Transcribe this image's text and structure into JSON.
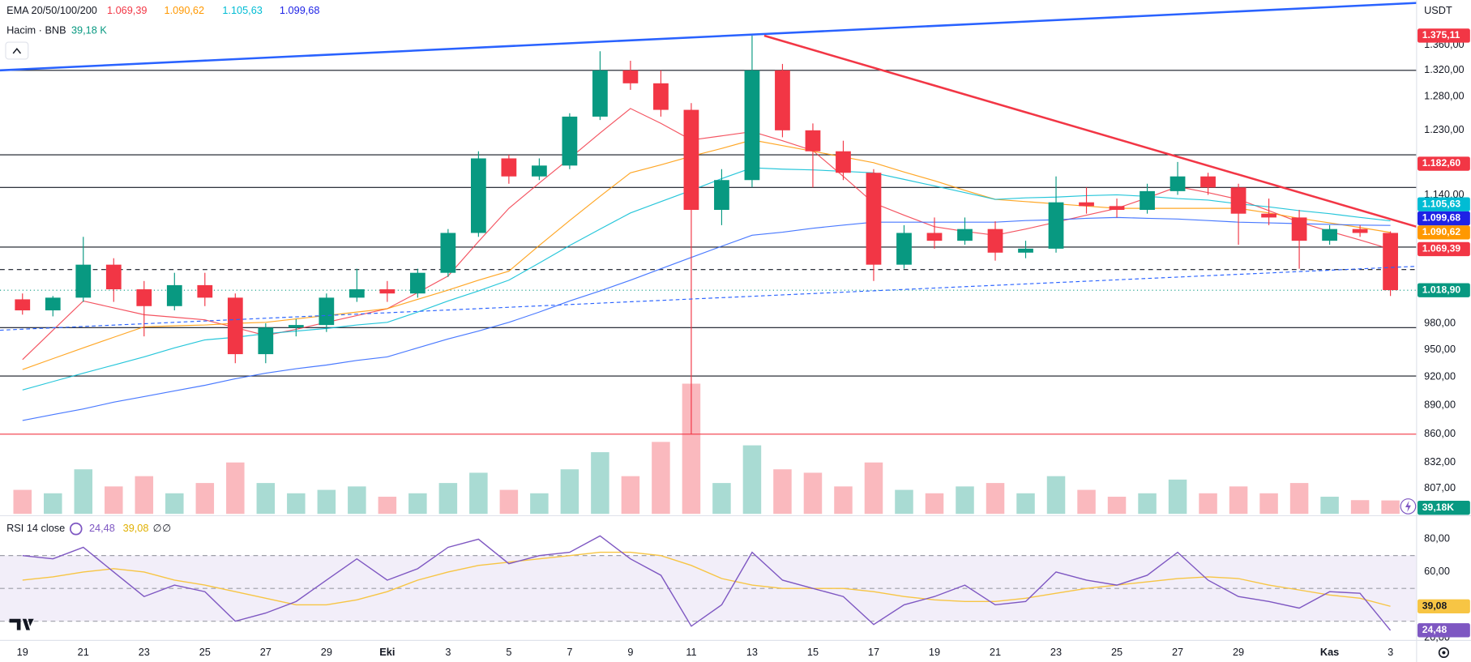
{
  "chart_data": {
    "type": "candlestick",
    "currency": "USDT",
    "ylim": [
      783,
      1434
    ],
    "log_scale": true,
    "yticks": [
      {
        "value": 1360,
        "label": "1.360,00"
      },
      {
        "value": 1320,
        "label": "1.320,00"
      },
      {
        "value": 1280,
        "label": "1.280,00"
      },
      {
        "value": 1230,
        "label": "1.230,00"
      },
      {
        "value": 1140,
        "label": "1.140,00"
      },
      {
        "value": 980,
        "label": "980,00"
      },
      {
        "value": 950,
        "label": "950,00"
      },
      {
        "value": 920,
        "label": "920,00"
      },
      {
        "value": 890,
        "label": "890,00"
      },
      {
        "value": 860,
        "label": "860,00"
      },
      {
        "value": 832,
        "label": "832,00"
      },
      {
        "value": 807,
        "label": "807,00"
      }
    ],
    "xlim": [
      -0.74,
      45.86
    ],
    "xticks": [
      {
        "value": 0,
        "label": "19"
      },
      {
        "value": 2,
        "label": "21"
      },
      {
        "value": 4,
        "label": "23"
      },
      {
        "value": 6,
        "label": "25"
      },
      {
        "value": 8,
        "label": "27"
      },
      {
        "value": 10,
        "label": "29"
      },
      {
        "value": 12,
        "label": "Eki"
      },
      {
        "value": 14,
        "label": "3"
      },
      {
        "value": 16,
        "label": "5"
      },
      {
        "value": 18,
        "label": "7"
      },
      {
        "value": 20,
        "label": "9"
      },
      {
        "value": 22,
        "label": "11"
      },
      {
        "value": 24,
        "label": "13"
      },
      {
        "value": 26,
        "label": "15"
      },
      {
        "value": 28,
        "label": "17"
      },
      {
        "value": 30,
        "label": "19"
      },
      {
        "value": 32,
        "label": "21"
      },
      {
        "value": 34,
        "label": "23"
      },
      {
        "value": 36,
        "label": "25"
      },
      {
        "value": 38,
        "label": "27"
      },
      {
        "value": 40,
        "label": "29"
      },
      {
        "value": 43,
        "label": "Kas"
      },
      {
        "value": 45,
        "label": "3"
      }
    ],
    "up_color": "#089981",
    "down_color": "#f23645",
    "candles": {
      "x": [
        0,
        1,
        2,
        3,
        4,
        5,
        6,
        7,
        8,
        9,
        10,
        11,
        12,
        13,
        14,
        15,
        16,
        17,
        18,
        19,
        20,
        21,
        22,
        23,
        24,
        25,
        26,
        27,
        28,
        29,
        30,
        31,
        32,
        33,
        34,
        35,
        36,
        37,
        38,
        39,
        40,
        41,
        42,
        43,
        44,
        45
      ],
      "open": [
        1008,
        995,
        1010,
        1050,
        1020,
        1000,
        1025,
        1010,
        945,
        975,
        978,
        1010,
        1020,
        1015,
        1040,
        1090,
        1190,
        1165,
        1180,
        1250,
        1320,
        1300,
        1260,
        1120,
        1160,
        1320,
        1230,
        1200,
        1170,
        1050,
        1090,
        1080,
        1095,
        1065,
        1070,
        1130,
        1125,
        1120,
        1145,
        1165,
        1150,
        1115,
        1110,
        1080,
        1095,
        1090
      ],
      "high": [
        1015,
        1012,
        1085,
        1058,
        1030,
        1040,
        1040,
        1015,
        980,
        985,
        1015,
        1045,
        1030,
        1045,
        1095,
        1200,
        1195,
        1190,
        1255,
        1350,
        1335,
        1320,
        1270,
        1175,
        1375,
        1330,
        1240,
        1215,
        1175,
        1100,
        1110,
        1110,
        1105,
        1080,
        1165,
        1150,
        1135,
        1155,
        1185,
        1170,
        1155,
        1135,
        1120,
        1100,
        1100,
        1092
      ],
      "low": [
        990,
        988,
        1005,
        1005,
        965,
        995,
        1000,
        935,
        935,
        965,
        970,
        1005,
        1005,
        1010,
        1035,
        1085,
        1155,
        1160,
        1175,
        1245,
        1290,
        1250,
        860,
        1100,
        1150,
        1220,
        1150,
        1160,
        1030,
        1045,
        1070,
        1075,
        1055,
        1058,
        1065,
        1115,
        1110,
        1115,
        1140,
        1140,
        1075,
        1100,
        1045,
        1075,
        1085,
        1012
      ],
      "close": [
        995,
        1010,
        1050,
        1020,
        1000,
        1025,
        1010,
        945,
        975,
        978,
        1010,
        1020,
        1015,
        1040,
        1090,
        1190,
        1165,
        1180,
        1250,
        1320,
        1300,
        1260,
        1120,
        1160,
        1320,
        1230,
        1200,
        1170,
        1050,
        1090,
        1080,
        1095,
        1065,
        1070,
        1130,
        1125,
        1120,
        1145,
        1165,
        1150,
        1115,
        1110,
        1080,
        1095,
        1090,
        1019
      ]
    },
    "ema_title": "EMA 20/50/100/200",
    "emas": [
      {
        "color": "#f23645",
        "last_label": "1.069,39",
        "values": [
          939,
          972,
          1006,
          998,
          990,
          987,
          984,
          975,
          966,
          973,
          981,
          989,
          997,
          1016,
          1036,
          1079,
          1122,
          1156,
          1190,
          1226,
          1262,
          1240,
          1216,
          1222,
          1228,
          1215,
          1201,
          1165,
          1129,
          1113,
          1098,
          1092,
          1087,
          1095,
          1104,
          1113,
          1122,
          1136,
          1151,
          1143,
          1134,
          1119,
          1104,
          1092,
          1081,
          1069.39
        ]
      },
      {
        "color": "#ff9800",
        "last_label": "1.090,62",
        "values": [
          928,
          940,
          952,
          964,
          976,
          977,
          978,
          980,
          981,
          985,
          989,
          993,
          997,
          1008,
          1019,
          1031,
          1042,
          1074,
          1106,
          1138,
          1170,
          1181,
          1193,
          1204,
          1216,
          1208,
          1200,
          1192,
          1184,
          1171,
          1159,
          1146,
          1134,
          1131,
          1128,
          1125,
          1122,
          1122,
          1122,
          1122,
          1122,
          1116,
          1109,
          1103,
          1097,
          1090.62
        ]
      },
      {
        "color": "#00bcd4",
        "last_label": "1.105,63",
        "values": [
          906,
          915,
          924,
          933,
          942,
          952,
          961,
          964,
          968,
          971,
          974,
          978,
          981,
          993,
          1006,
          1018,
          1031,
          1052,
          1074,
          1095,
          1116,
          1131,
          1146,
          1162,
          1177,
          1175,
          1174,
          1172,
          1170,
          1161,
          1152,
          1143,
          1134,
          1136,
          1137,
          1139,
          1140,
          1138,
          1135,
          1133,
          1128,
          1124,
          1119,
          1115,
          1110,
          1105.63
        ]
      },
      {
        "color": "#2962ff",
        "last_label": "1.099,68",
        "values": [
          874,
          880,
          886,
          893,
          899,
          905,
          911,
          918,
          924,
          929,
          933,
          938,
          942,
          952,
          962,
          971,
          981,
          993,
          1006,
          1018,
          1031,
          1045,
          1059,
          1073,
          1087,
          1091,
          1096,
          1100,
          1104,
          1104,
          1104,
          1104,
          1104,
          1106,
          1107,
          1109,
          1110,
          1109,
          1108,
          1106,
          1104,
          1103,
          1102,
          1101,
          1100,
          1099.68
        ]
      }
    ],
    "price_tags": [
      {
        "value": 1375.11,
        "label": "1.375,11",
        "color": "#f23645"
      },
      {
        "value": 1182.6,
        "label": "1.182,60",
        "color": "#f23645"
      },
      {
        "value": 1105.63,
        "label": "1.105,63",
        "color": "#00bcd4"
      },
      {
        "value": 1099.68,
        "label": "1.099,68",
        "color": "#1e22e6"
      },
      {
        "value": 1090.62,
        "label": "1.090,62",
        "color": "#ff9800"
      },
      {
        "value": 1069.39,
        "label": "1.069,39",
        "color": "#f23645"
      },
      {
        "value": 1018.9,
        "label": "1.018,90",
        "color": "#089981"
      }
    ],
    "hlines": [
      {
        "value": 1320,
        "color": "#131722"
      },
      {
        "value": 1195,
        "color": "#131722"
      },
      {
        "value": 1150,
        "color": "#131722"
      },
      {
        "value": 1072,
        "color": "#131722"
      },
      {
        "value": 1044,
        "color": "#131722",
        "dash": true
      },
      {
        "value": 975,
        "color": "#131722"
      },
      {
        "value": 921,
        "color": "#131722"
      },
      {
        "value": 860,
        "color": "#f23645"
      },
      {
        "value": 1018.9,
        "color": "#089981",
        "dot": true
      }
    ],
    "trendlines": [
      {
        "color": "#2962ff",
        "points": [
          [
            -0.74,
            1320
          ],
          [
            45.86,
            1429
          ]
        ]
      },
      {
        "color": "#f23645",
        "points": [
          [
            24.4,
            1375
          ],
          [
            45.86,
            1098
          ]
        ]
      },
      {
        "color": "#2962ff",
        "dash": true,
        "points": [
          [
            -0.74,
            972
          ],
          [
            45.86,
            1048
          ]
        ]
      }
    ],
    "volume": {
      "title": "Hacim · BNB",
      "header_label": "39,18 K",
      "tag_label": "39,18K",
      "ylim": [
        0,
        1500
      ],
      "values": [
        70,
        60,
        130,
        80,
        110,
        60,
        90,
        150,
        90,
        60,
        70,
        80,
        50,
        60,
        90,
        120,
        70,
        60,
        130,
        180,
        110,
        210,
        380,
        90,
        200,
        130,
        120,
        80,
        150,
        70,
        60,
        80,
        90,
        60,
        110,
        70,
        50,
        60,
        100,
        60,
        80,
        60,
        90,
        50,
        40,
        39.18
      ]
    },
    "rsi": {
      "title": "RSI 14 close",
      "ylim": [
        18.3,
        91.4
      ],
      "yticks": [
        {
          "value": 80,
          "label": "80,00"
        },
        {
          "value": 60,
          "label": "60,00"
        },
        {
          "value": 20,
          "label": "20,00"
        }
      ],
      "bands": [
        70,
        50,
        30
      ],
      "color": "#7e57c2",
      "ma_color": "#f7c544",
      "values": [
        70,
        68,
        75,
        60,
        45,
        52,
        48,
        30,
        35,
        42,
        55,
        68,
        55,
        62,
        75,
        80,
        65,
        70,
        72,
        82,
        68,
        58,
        27,
        40,
        72,
        55,
        50,
        45,
        28,
        40,
        45,
        52,
        40,
        42,
        60,
        55,
        52,
        58,
        72,
        55,
        45,
        42,
        38,
        48,
        47,
        24.48
      ],
      "ma": [
        55,
        57,
        60,
        62,
        60,
        55,
        52,
        48,
        44,
        40,
        40,
        43,
        48,
        55,
        60,
        64,
        66,
        68,
        70,
        72,
        72,
        70,
        64,
        56,
        52,
        50,
        50,
        50,
        48,
        45,
        43,
        42,
        42,
        44,
        47,
        50,
        52,
        54,
        56,
        57,
        56,
        52,
        49,
        46,
        44,
        39.08
      ],
      "tags": [
        {
          "value": 39.08,
          "label": "39,08",
          "color": "#f7c544"
        },
        {
          "value": 24.48,
          "label": "24,48",
          "color": "#7e57c2"
        }
      ],
      "extra_labels": [
        "∅",
        "∅"
      ]
    }
  }
}
